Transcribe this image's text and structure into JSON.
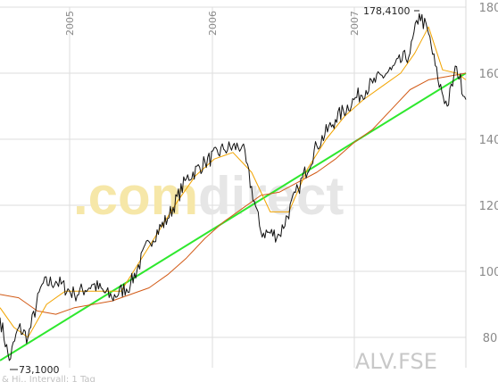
{
  "chart_data": {
    "type": "line",
    "ylim": [
      70,
      180
    ],
    "yticks": [
      80,
      100,
      120,
      140,
      160,
      180
    ],
    "x_labels": [
      "2005",
      "2006",
      "2007"
    ],
    "grid": true,
    "watermark": {
      "prefix": ".com",
      "suffix": "direct"
    },
    "symbol": "ALV.FSE",
    "footer": "& Hi.. Intervall: 1 Tag",
    "annotations": {
      "high": "178,4100",
      "low": "73,1000"
    },
    "price": {
      "x": [
        0.0,
        0.02,
        0.04,
        0.06,
        0.09,
        0.12,
        0.16,
        0.2,
        0.24,
        0.28,
        0.32,
        0.36,
        0.4,
        0.44,
        0.48,
        0.52,
        0.56,
        0.6,
        0.64,
        0.68,
        0.72,
        0.76,
        0.8,
        0.84,
        0.88,
        0.9,
        0.92,
        0.94,
        0.96,
        0.98,
        1.0
      ],
      "values": [
        86,
        73,
        83,
        80,
        96,
        97,
        93,
        96,
        92,
        96,
        109,
        116,
        128,
        133,
        137,
        138,
        112,
        111,
        125,
        138,
        146,
        152,
        157,
        161,
        166,
        178,
        172,
        158,
        150,
        162,
        152
      ]
    },
    "sma_fast": {
      "x": [
        0.0,
        0.03,
        0.06,
        0.1,
        0.14,
        0.18,
        0.22,
        0.26,
        0.3,
        0.34,
        0.38,
        0.42,
        0.46,
        0.5,
        0.54,
        0.58,
        0.62,
        0.66,
        0.7,
        0.74,
        0.78,
        0.82,
        0.86,
        0.89,
        0.92,
        0.95,
        0.98,
        1.0
      ],
      "values": [
        89,
        83,
        80,
        90,
        94,
        94,
        94,
        94,
        103,
        112,
        121,
        129,
        134,
        136,
        130,
        118,
        118,
        131,
        140,
        147,
        152,
        156,
        160,
        166,
        174,
        161,
        160,
        158
      ]
    },
    "sma_slow": {
      "x": [
        0.0,
        0.04,
        0.08,
        0.12,
        0.16,
        0.2,
        0.24,
        0.28,
        0.32,
        0.36,
        0.4,
        0.44,
        0.48,
        0.52,
        0.56,
        0.6,
        0.64,
        0.68,
        0.72,
        0.76,
        0.8,
        0.84,
        0.88,
        0.92,
        0.96,
        1.0
      ],
      "values": [
        93,
        92,
        88,
        87,
        89,
        90,
        91,
        93,
        95,
        99,
        104,
        110,
        115,
        119,
        123,
        124,
        127,
        130,
        134,
        139,
        143,
        149,
        155,
        158,
        159,
        160
      ]
    },
    "trendline": {
      "x": [
        0.0,
        1.0
      ],
      "values": [
        73,
        160
      ]
    }
  }
}
